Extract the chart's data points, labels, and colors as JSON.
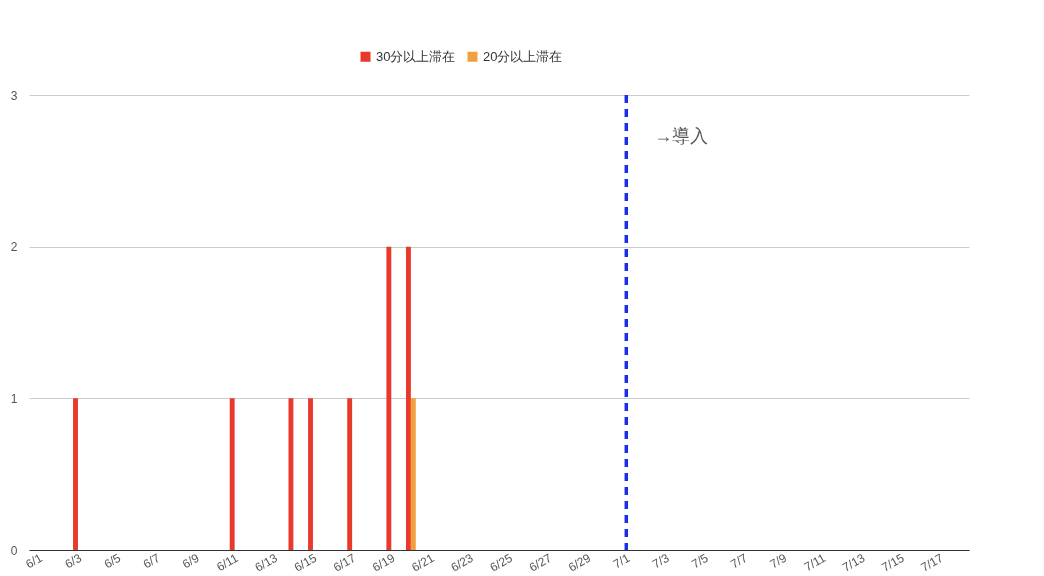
{
  "chart_data": {
    "type": "bar",
    "categories": [
      "6/1",
      null,
      "6/3",
      null,
      "6/5",
      null,
      "6/7",
      null,
      "6/9",
      null,
      "6/11",
      null,
      "6/13",
      null,
      "6/15",
      null,
      "6/17",
      null,
      "6/19",
      null,
      "6/21",
      null,
      "6/23",
      null,
      "6/25",
      null,
      "6/27",
      null,
      "6/29",
      null,
      "7/1",
      null,
      "7/3",
      null,
      "7/5",
      null,
      "7/7",
      null,
      "7/9",
      null,
      "7/11",
      null,
      "7/13",
      null,
      "7/15",
      null,
      "7/17",
      null
    ],
    "series": [
      {
        "name": "30分以上滞在",
        "color": "#e8392b",
        "values": [
          0,
          0,
          1,
          0,
          0,
          0,
          0,
          0,
          0,
          0,
          1,
          0,
          0,
          1,
          1,
          0,
          1,
          0,
          2,
          2,
          0,
          0,
          0,
          0,
          0,
          0,
          0,
          0,
          0,
          0,
          0,
          0,
          0,
          0,
          0,
          0,
          0,
          0,
          0,
          0,
          0,
          0,
          0,
          0,
          0,
          0,
          0,
          0
        ]
      },
      {
        "name": "20分以上滞在",
        "color": "#f2a03d",
        "values": [
          0,
          0,
          0,
          0,
          0,
          0,
          0,
          0,
          0,
          0,
          0,
          0,
          0,
          0,
          0,
          0,
          0,
          0,
          0,
          1,
          0,
          0,
          0,
          0,
          0,
          0,
          0,
          0,
          0,
          0,
          0,
          0,
          0,
          0,
          0,
          0,
          0,
          0,
          0,
          0,
          0,
          0,
          0,
          0,
          0,
          0,
          0,
          0
        ]
      }
    ],
    "ylim": [
      0,
      3
    ],
    "yticks": [
      0,
      1,
      2,
      3
    ],
    "grid": "y",
    "legend": "top",
    "ref_lines": [
      {
        "axis": "x",
        "value": "7/1",
        "label": "→導入",
        "color": "#1a2fe8",
        "line_style": "dashed"
      }
    ]
  }
}
